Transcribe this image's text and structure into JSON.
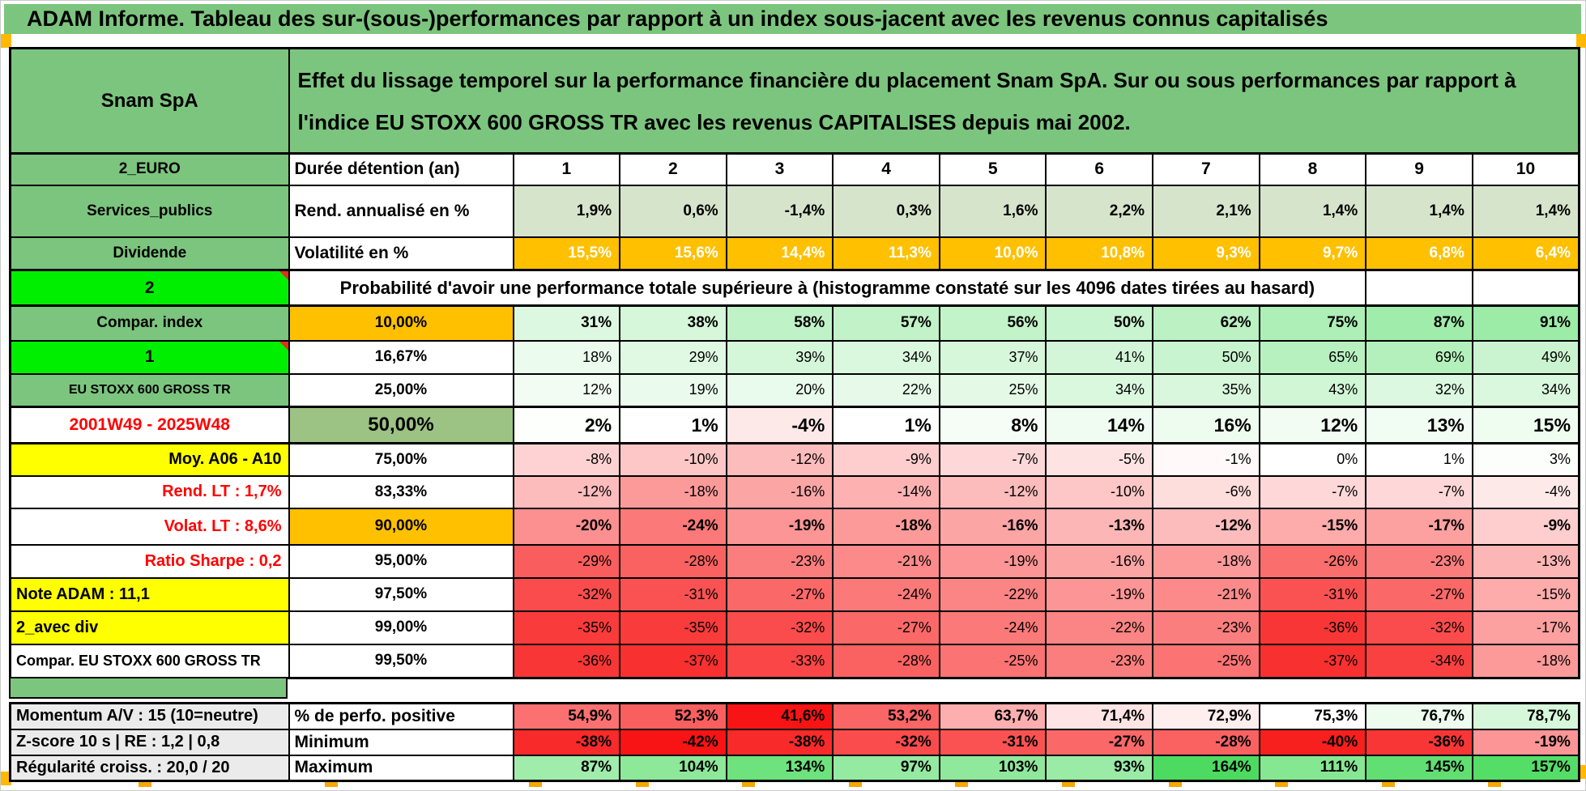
{
  "page_title": "ADAM Informe. Tableau des sur-(sous-)performances par rapport à un index sous-jacent avec les revenus connus capitalisés",
  "colors": {
    "green_header": "#7CC57E",
    "bright_green": "#00EF00",
    "orange": "#FFC000",
    "yellow": "#FFFF00",
    "sage": "#D6E4CB",
    "mid_green": "#9CC284",
    "gray_label": "#EBEBEB",
    "red_text": "#FF0000",
    "scale_red": "#F81414",
    "scale_green": "#4CDB60",
    "accent_square": "#FFB900"
  },
  "scales": {
    "global": {
      "pos": 164,
      "neg": 42
    },
    "perfo": {
      "mid": 75.3,
      "pos": 14.7,
      "neg": 33.7
    }
  },
  "table": {
    "corner_label": "Snam SpA",
    "description": "Effet du lissage temporel sur la performance financière du placement Snam SpA. Sur ou sous performances par rapport à l'indice EU STOXX 600 GROSS TR avec les revenus CAPITALISES depuis mai 2002.",
    "col_a": [
      {
        "text": "2_EURO",
        "variant": "green"
      },
      {
        "text": "Services_publics",
        "variant": "green"
      },
      {
        "text": "Dividende",
        "variant": "green"
      },
      {
        "text": "2",
        "variant": "bright",
        "comment_marker": true
      },
      {
        "text": "Compar. index",
        "variant": "green"
      },
      {
        "text": "1",
        "variant": "bright",
        "comment_marker": true
      },
      {
        "text": "EU STOXX 600 GROSS TR",
        "variant": "green-small"
      },
      {
        "text": "2001W49 - 2025W48",
        "variant": "red-center"
      },
      {
        "text": "Moy. A06 - A10",
        "variant": "yellow-right"
      },
      {
        "text": "Rend. LT :   1,7%",
        "variant": "red-right"
      },
      {
        "text": "Volat. LT :   8,6%",
        "variant": "red-right"
      },
      {
        "text": "Ratio Sharpe :   0,2",
        "variant": "red-right"
      },
      {
        "text": "Note ADAM : 11,1",
        "variant": "yellow-left"
      },
      {
        "text": "2_avec div",
        "variant": "yellow-left"
      },
      {
        "text": "Compar. EU STOXX 600 GROSS TR",
        "variant": "white-left"
      },
      {
        "text": "Momentum A/V : 15 (10=neutre)",
        "variant": "gray"
      },
      {
        "text": "Z-score 10 s | RE : 1,2 | 0,8",
        "variant": "gray"
      },
      {
        "text": "Régularité croiss. : 20,0 / 20",
        "variant": "gray"
      }
    ],
    "duration_header": {
      "label": "Durée détention (an)",
      "values": [
        "1",
        "2",
        "3",
        "4",
        "5",
        "6",
        "7",
        "8",
        "9",
        "10"
      ]
    },
    "fixed_rows": [
      {
        "label": "Rend. annualisé en %",
        "bg": "sage",
        "bold": true,
        "white_text": false,
        "disp": [
          "1,9%",
          "0,6%",
          "-1,4%",
          "0,3%",
          "1,6%",
          "2,2%",
          "2,1%",
          "1,4%",
          "1,4%",
          "1,4%"
        ]
      },
      {
        "label": "Volatilité en %",
        "bg": "orange",
        "bold": true,
        "white_text": true,
        "disp": [
          "15,5%",
          "15,6%",
          "14,4%",
          "11,3%",
          "10,0%",
          "10,8%",
          "9,3%",
          "9,7%",
          "6,8%",
          "6,4%"
        ]
      }
    ],
    "prob_header": "Probabilité d'avoir une performance totale supérieure à (histogramme constaté sur les 4096 dates tirées au hasard)",
    "prob_rows": [
      {
        "threshold": "10,00%",
        "threshold_variant": "orange",
        "weight": "bold",
        "nums": [
          31,
          38,
          58,
          57,
          56,
          50,
          62,
          75,
          87,
          91
        ],
        "disp": [
          "31%",
          "38%",
          "58%",
          "57%",
          "56%",
          "50%",
          "62%",
          "75%",
          "87%",
          "91%"
        ]
      },
      {
        "threshold": "16,67%",
        "threshold_variant": "default",
        "weight": "normal",
        "nums": [
          18,
          29,
          39,
          34,
          37,
          41,
          50,
          65,
          69,
          49
        ],
        "disp": [
          "18%",
          "29%",
          "39%",
          "34%",
          "37%",
          "41%",
          "50%",
          "65%",
          "69%",
          "49%"
        ]
      },
      {
        "threshold": "25,00%",
        "threshold_variant": "default",
        "weight": "normal",
        "nums": [
          12,
          19,
          20,
          22,
          25,
          34,
          35,
          43,
          32,
          34
        ],
        "disp": [
          "12%",
          "19%",
          "20%",
          "22%",
          "25%",
          "34%",
          "35%",
          "43%",
          "32%",
          "34%"
        ]
      },
      {
        "threshold": "50,00%",
        "threshold_variant": "big",
        "weight": "big",
        "nums": [
          2,
          1,
          -4,
          1,
          8,
          14,
          16,
          12,
          13,
          15
        ],
        "disp": [
          "2%",
          "1%",
          "-4%",
          "1%",
          "8%",
          "14%",
          "16%",
          "12%",
          "13%",
          "15%"
        ]
      },
      {
        "threshold": "75,00%",
        "threshold_variant": "default",
        "weight": "normal",
        "nums": [
          -8,
          -10,
          -12,
          -9,
          -7,
          -5,
          -1,
          0,
          1,
          3
        ],
        "disp": [
          "-8%",
          "-10%",
          "-12%",
          "-9%",
          "-7%",
          "-5%",
          "-1%",
          "0%",
          "1%",
          "3%"
        ]
      },
      {
        "threshold": "83,33%",
        "threshold_variant": "default",
        "weight": "normal",
        "nums": [
          -12,
          -18,
          -16,
          -14,
          -12,
          -10,
          -6,
          -7,
          -7,
          -4
        ],
        "disp": [
          "-12%",
          "-18%",
          "-16%",
          "-14%",
          "-12%",
          "-10%",
          "-6%",
          "-7%",
          "-7%",
          "-4%"
        ]
      },
      {
        "threshold": "90,00%",
        "threshold_variant": "orange",
        "weight": "bold",
        "nums": [
          -20,
          -24,
          -19,
          -18,
          -16,
          -13,
          -12,
          -15,
          -17,
          -9
        ],
        "disp": [
          "-20%",
          "-24%",
          "-19%",
          "-18%",
          "-16%",
          "-13%",
          "-12%",
          "-15%",
          "-17%",
          "-9%"
        ]
      },
      {
        "threshold": "95,00%",
        "threshold_variant": "default",
        "weight": "normal",
        "nums": [
          -29,
          -28,
          -23,
          -21,
          -19,
          -16,
          -18,
          -26,
          -23,
          -13
        ],
        "disp": [
          "-29%",
          "-28%",
          "-23%",
          "-21%",
          "-19%",
          "-16%",
          "-18%",
          "-26%",
          "-23%",
          "-13%"
        ]
      },
      {
        "threshold": "97,50%",
        "threshold_variant": "default",
        "weight": "normal",
        "nums": [
          -32,
          -31,
          -27,
          -24,
          -22,
          -19,
          -21,
          -31,
          -27,
          -15
        ],
        "disp": [
          "-32%",
          "-31%",
          "-27%",
          "-24%",
          "-22%",
          "-19%",
          "-21%",
          "-31%",
          "-27%",
          "-15%"
        ]
      },
      {
        "threshold": "99,00%",
        "threshold_variant": "default",
        "weight": "normal",
        "nums": [
          -35,
          -35,
          -32,
          -27,
          -24,
          -22,
          -23,
          -36,
          -32,
          -17
        ],
        "disp": [
          "-35%",
          "-35%",
          "-32%",
          "-27%",
          "-24%",
          "-22%",
          "-23%",
          "-36%",
          "-32%",
          "-17%"
        ]
      },
      {
        "threshold": "99,50%",
        "threshold_variant": "default",
        "weight": "normal",
        "nums": [
          -36,
          -37,
          -33,
          -28,
          -25,
          -23,
          -25,
          -37,
          -34,
          -18
        ],
        "disp": [
          "-36%",
          "-37%",
          "-33%",
          "-28%",
          "-25%",
          "-23%",
          "-25%",
          "-37%",
          "-34%",
          "-18%"
        ]
      }
    ],
    "summary_rows": [
      {
        "label": "% de perfo. positive",
        "scale": "perfo",
        "weight": "bold",
        "nums": [
          54.9,
          52.3,
          41.6,
          53.2,
          63.7,
          71.4,
          72.9,
          75.3,
          76.7,
          78.7
        ],
        "disp": [
          "54,9%",
          "52,3%",
          "41,6%",
          "53,2%",
          "63,7%",
          "71,4%",
          "72,9%",
          "75,3%",
          "76,7%",
          "78,7%"
        ]
      },
      {
        "label": "Minimum",
        "scale": "global",
        "weight": "bold",
        "nums": [
          -38,
          -42,
          -38,
          -32,
          -31,
          -27,
          -28,
          -40,
          -36,
          -19
        ],
        "disp": [
          "-38%",
          "-42%",
          "-38%",
          "-32%",
          "-31%",
          "-27%",
          "-28%",
          "-40%",
          "-36%",
          "-19%"
        ]
      },
      {
        "label": "Maximum",
        "scale": "global",
        "weight": "bold",
        "nums": [
          87,
          104,
          134,
          97,
          103,
          93,
          164,
          111,
          145,
          157
        ],
        "disp": [
          "87%",
          "104%",
          "134%",
          "97%",
          "103%",
          "93%",
          "164%",
          "111%",
          "145%",
          "157%"
        ]
      }
    ]
  }
}
